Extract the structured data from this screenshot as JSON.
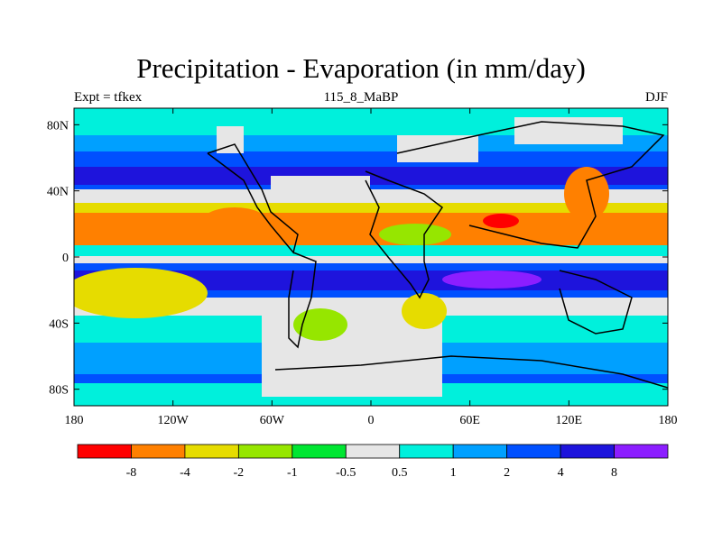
{
  "title": "Precipitation - Evaporation (in mm/day)",
  "left_label": "Expt = tfkex",
  "center_label": "115_8_MaBP",
  "right_label": "DJF",
  "lat_ticks": [
    "80N",
    "40N",
    "0",
    "40S",
    "80S"
  ],
  "lat_values": [
    80,
    40,
    0,
    -40,
    -80
  ],
  "lon_ticks": [
    "180",
    "120W",
    "60W",
    "0",
    "60E",
    "120E",
    "180"
  ],
  "lon_values": [
    -180,
    -120,
    -60,
    0,
    60,
    120,
    180
  ],
  "colorbar": {
    "colors": [
      "#ff0000",
      "#ff8000",
      "#e6dc00",
      "#96e600",
      "#00e632",
      "#e6e6e6",
      "#00f0dc",
      "#00a0ff",
      "#0050ff",
      "#1e14dc",
      "#8c1eff"
    ],
    "labels": [
      "-8",
      "-4",
      "-2",
      "-1",
      "-0.5",
      "0.5",
      "1",
      "2",
      "4",
      "8"
    ]
  }
}
